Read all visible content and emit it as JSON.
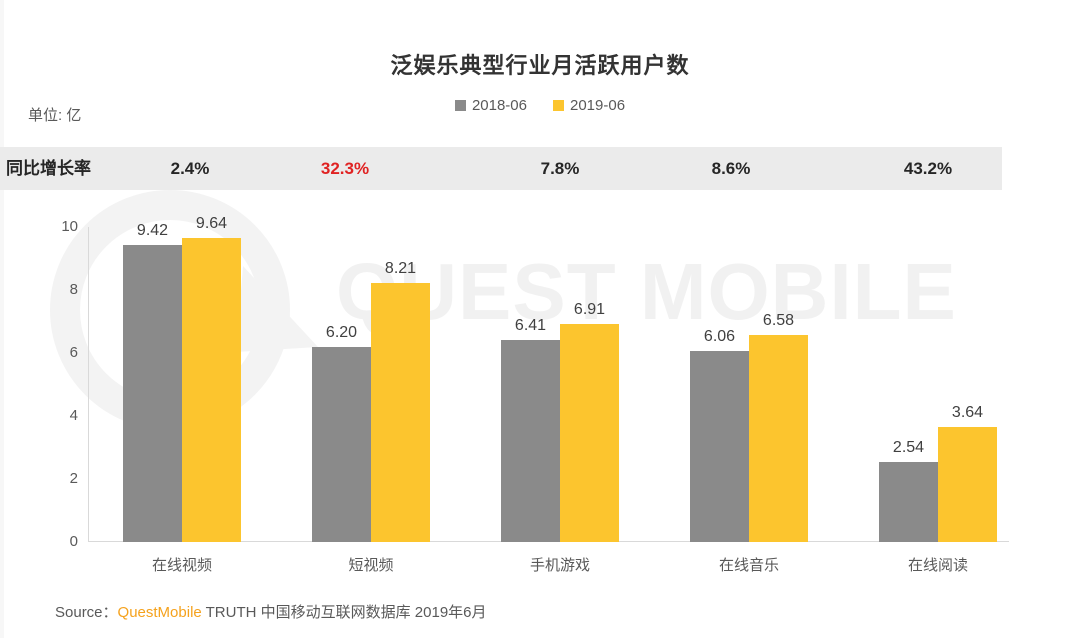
{
  "title": "泛娱乐典型行业月活跃用户数",
  "unit_label": "单位: 亿",
  "legend": [
    {
      "label": "2018-06",
      "color": "#8a8a8a"
    },
    {
      "label": "2019-06",
      "color": "#fcc52e"
    }
  ],
  "growth_row": {
    "label": "同比增长率",
    "values": [
      {
        "text": "2.4%",
        "color": "#262626"
      },
      {
        "text": "32.3%",
        "color": "#e02222"
      },
      {
        "text": "7.8%",
        "color": "#262626"
      },
      {
        "text": "8.6%",
        "color": "#262626"
      },
      {
        "text": "43.2%",
        "color": "#262626"
      }
    ]
  },
  "watermark": {
    "text": "QUEST MOBILE",
    "logo": "questmobile-q-bubble-logo"
  },
  "source": {
    "prefix": "Source：",
    "brand": "QuestMobile",
    "rest": " TRUTH 中国移动互联网数据库 2019年6月"
  },
  "chart_data": {
    "type": "bar",
    "title": "泛娱乐典型行业月活跃用户数",
    "unit": "亿",
    "categories": [
      "在线视频",
      "短视频",
      "手机游戏",
      "在线音乐",
      "在线阅读"
    ],
    "series": [
      {
        "name": "2018-06",
        "color": "#8a8a8a",
        "values": [
          9.42,
          6.2,
          6.41,
          6.06,
          2.54
        ]
      },
      {
        "name": "2019-06",
        "color": "#fcc52e",
        "values": [
          9.64,
          8.21,
          6.91,
          6.58,
          3.64
        ]
      }
    ],
    "growth_rates": [
      "2.4%",
      "32.3%",
      "7.8%",
      "8.6%",
      "43.2%"
    ],
    "yticks": [
      0,
      2,
      4,
      6,
      8,
      10
    ],
    "ylim": [
      0,
      10
    ],
    "grid": false,
    "legend_position": "top",
    "value_labels": true
  }
}
